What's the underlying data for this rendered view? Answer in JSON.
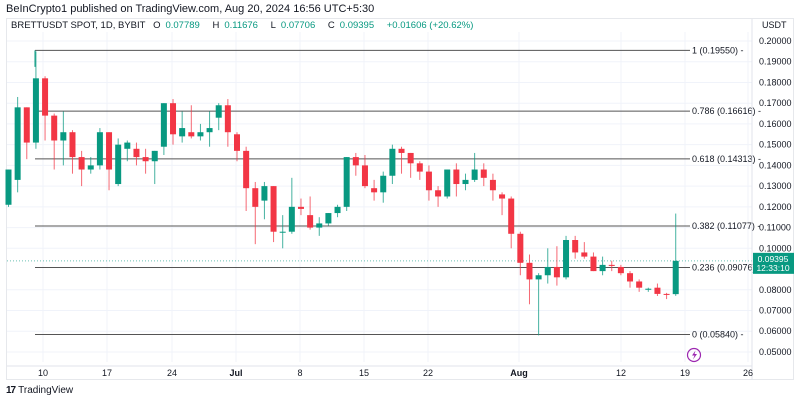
{
  "publisher_line": "BeInCrypto1 published on TradingView.com, Aug 20, 2024 16:56 UTC+5:30",
  "legend": {
    "symbol": "BRETTUSDT SPOT, 1D, BYBIT",
    "o_label": "O",
    "o": "0.07789",
    "h_label": "H",
    "h": "0.11676",
    "l_label": "L",
    "l": "0.07706",
    "c_label": "C",
    "c": "0.09395",
    "change": "+0.01606 (+20.62%)"
  },
  "axis": {
    "currency": "USDT",
    "last_price": "0.09395",
    "countdown": "12:33:10"
  },
  "footer": {
    "brand": "TradingView"
  },
  "colors": {
    "up": "#089981",
    "down": "#f23645",
    "fib_line": "#555555",
    "grid": "#f0f3fa",
    "price_line": "#089981"
  },
  "chart_data": {
    "type": "candlestick",
    "title": "BRETTUSDT SPOT, 1D, BYBIT",
    "xlabel": "",
    "ylabel": "USDT",
    "ylim": [
      0.045,
      0.205
    ],
    "grid": true,
    "y_ticks": [
      "0.20000",
      "0.19000",
      "0.18000",
      "0.17000",
      "0.16000",
      "0.15000",
      "0.14000",
      "0.13000",
      "0.12000",
      "0.11000",
      "0.10000",
      "0.08000",
      "0.07000",
      "0.06000",
      "0.05000"
    ],
    "x_ticks": [
      "10",
      "17",
      "24",
      "Jul",
      "8",
      "15",
      "22",
      "Aug",
      "12",
      "19",
      "26"
    ],
    "fib_levels": [
      {
        "ratio": "1",
        "price": 0.1955,
        "label": "1 (0.19550)"
      },
      {
        "ratio": "0.786",
        "price": 0.16616,
        "label": "0.786 (0.16616)"
      },
      {
        "ratio": "0.618",
        "price": 0.14313,
        "label": "0.618 (0.14313)"
      },
      {
        "ratio": "0.382",
        "price": 0.11077,
        "label": "0.382 (0.11077)"
      },
      {
        "ratio": "0.236",
        "price": 0.09076,
        "label": "0.236 (0.09076)"
      },
      {
        "ratio": "0",
        "price": 0.0584,
        "label": "0 (0.05840)"
      }
    ],
    "last": {
      "open": 0.07789,
      "high": 0.11676,
      "low": 0.07706,
      "close": 0.09395,
      "change": "+0.01606",
      "change_pct": "+20.62%"
    },
    "candles": [
      {
        "o": 0.121,
        "h": 0.132,
        "l": 0.12,
        "c": 0.138
      },
      {
        "o": 0.133,
        "h": 0.173,
        "l": 0.127,
        "c": 0.168
      },
      {
        "o": 0.168,
        "h": 0.168,
        "l": 0.143,
        "c": 0.151
      },
      {
        "o": 0.151,
        "h": 0.195,
        "l": 0.148,
        "c": 0.182
      },
      {
        "o": 0.182,
        "h": 0.183,
        "l": 0.152,
        "c": 0.164
      },
      {
        "o": 0.164,
        "h": 0.165,
        "l": 0.138,
        "c": 0.152
      },
      {
        "o": 0.152,
        "h": 0.166,
        "l": 0.14,
        "c": 0.156
      },
      {
        "o": 0.156,
        "h": 0.157,
        "l": 0.136,
        "c": 0.144
      },
      {
        "o": 0.144,
        "h": 0.147,
        "l": 0.13,
        "c": 0.138
      },
      {
        "o": 0.138,
        "h": 0.144,
        "l": 0.136,
        "c": 0.14
      },
      {
        "o": 0.14,
        "h": 0.158,
        "l": 0.138,
        "c": 0.156
      },
      {
        "o": 0.156,
        "h": 0.156,
        "l": 0.128,
        "c": 0.138
      },
      {
        "o": 0.131,
        "h": 0.153,
        "l": 0.13,
        "c": 0.15
      },
      {
        "o": 0.148,
        "h": 0.152,
        "l": 0.142,
        "c": 0.151
      },
      {
        "o": 0.148,
        "h": 0.151,
        "l": 0.14,
        "c": 0.144
      },
      {
        "o": 0.144,
        "h": 0.148,
        "l": 0.136,
        "c": 0.142
      },
      {
        "o": 0.142,
        "h": 0.147,
        "l": 0.131,
        "c": 0.147
      },
      {
        "o": 0.149,
        "h": 0.17,
        "l": 0.145,
        "c": 0.17
      },
      {
        "o": 0.17,
        "h": 0.172,
        "l": 0.15,
        "c": 0.155
      },
      {
        "o": 0.154,
        "h": 0.166,
        "l": 0.151,
        "c": 0.158
      },
      {
        "o": 0.156,
        "h": 0.169,
        "l": 0.153,
        "c": 0.154
      },
      {
        "o": 0.154,
        "h": 0.16,
        "l": 0.152,
        "c": 0.156
      },
      {
        "o": 0.156,
        "h": 0.166,
        "l": 0.149,
        "c": 0.158
      },
      {
        "o": 0.163,
        "h": 0.17,
        "l": 0.157,
        "c": 0.169
      },
      {
        "o": 0.169,
        "h": 0.172,
        "l": 0.149,
        "c": 0.156
      },
      {
        "o": 0.155,
        "h": 0.156,
        "l": 0.142,
        "c": 0.147
      },
      {
        "o": 0.147,
        "h": 0.149,
        "l": 0.118,
        "c": 0.129
      },
      {
        "o": 0.129,
        "h": 0.132,
        "l": 0.102,
        "c": 0.12
      },
      {
        "o": 0.123,
        "h": 0.132,
        "l": 0.114,
        "c": 0.13
      },
      {
        "o": 0.13,
        "h": 0.13,
        "l": 0.103,
        "c": 0.108
      },
      {
        "o": 0.108,
        "h": 0.116,
        "l": 0.1,
        "c": 0.108
      },
      {
        "o": 0.108,
        "h": 0.134,
        "l": 0.107,
        "c": 0.12
      },
      {
        "o": 0.12,
        "h": 0.124,
        "l": 0.116,
        "c": 0.119
      },
      {
        "o": 0.116,
        "h": 0.125,
        "l": 0.109,
        "c": 0.11
      },
      {
        "o": 0.11,
        "h": 0.115,
        "l": 0.106,
        "c": 0.112
      },
      {
        "o": 0.112,
        "h": 0.117,
        "l": 0.111,
        "c": 0.117
      },
      {
        "o": 0.117,
        "h": 0.121,
        "l": 0.115,
        "c": 0.12
      },
      {
        "o": 0.12,
        "h": 0.144,
        "l": 0.118,
        "c": 0.144
      },
      {
        "o": 0.144,
        "h": 0.146,
        "l": 0.135,
        "c": 0.14
      },
      {
        "o": 0.14,
        "h": 0.145,
        "l": 0.129,
        "c": 0.13
      },
      {
        "o": 0.129,
        "h": 0.133,
        "l": 0.123,
        "c": 0.127
      },
      {
        "o": 0.127,
        "h": 0.137,
        "l": 0.122,
        "c": 0.135
      },
      {
        "o": 0.135,
        "h": 0.15,
        "l": 0.131,
        "c": 0.148
      },
      {
        "o": 0.148,
        "h": 0.149,
        "l": 0.136,
        "c": 0.146
      },
      {
        "o": 0.146,
        "h": 0.145,
        "l": 0.134,
        "c": 0.141
      },
      {
        "o": 0.141,
        "h": 0.142,
        "l": 0.133,
        "c": 0.137
      },
      {
        "o": 0.137,
        "h": 0.14,
        "l": 0.123,
        "c": 0.128
      },
      {
        "o": 0.128,
        "h": 0.13,
        "l": 0.12,
        "c": 0.125
      },
      {
        "o": 0.125,
        "h": 0.138,
        "l": 0.124,
        "c": 0.138
      },
      {
        "o": 0.138,
        "h": 0.141,
        "l": 0.125,
        "c": 0.131
      },
      {
        "o": 0.131,
        "h": 0.136,
        "l": 0.128,
        "c": 0.133
      },
      {
        "o": 0.133,
        "h": 0.146,
        "l": 0.132,
        "c": 0.138
      },
      {
        "o": 0.138,
        "h": 0.141,
        "l": 0.13,
        "c": 0.134
      },
      {
        "o": 0.133,
        "h": 0.136,
        "l": 0.123,
        "c": 0.128
      },
      {
        "o": 0.126,
        "h": 0.127,
        "l": 0.116,
        "c": 0.124
      },
      {
        "o": 0.124,
        "h": 0.125,
        "l": 0.1,
        "c": 0.107
      },
      {
        "o": 0.107,
        "h": 0.108,
        "l": 0.087,
        "c": 0.093
      },
      {
        "o": 0.093,
        "h": 0.097,
        "l": 0.073,
        "c": 0.085
      },
      {
        "o": 0.085,
        "h": 0.088,
        "l": 0.058,
        "c": 0.087
      },
      {
        "o": 0.087,
        "h": 0.1,
        "l": 0.083,
        "c": 0.091
      },
      {
        "o": 0.091,
        "h": 0.101,
        "l": 0.082,
        "c": 0.086
      },
      {
        "o": 0.086,
        "h": 0.106,
        "l": 0.085,
        "c": 0.104
      },
      {
        "o": 0.104,
        "h": 0.106,
        "l": 0.095,
        "c": 0.098
      },
      {
        "o": 0.098,
        "h": 0.103,
        "l": 0.095,
        "c": 0.096
      },
      {
        "o": 0.096,
        "h": 0.098,
        "l": 0.09,
        "c": 0.089
      },
      {
        "o": 0.089,
        "h": 0.096,
        "l": 0.087,
        "c": 0.092
      },
      {
        "o": 0.092,
        "h": 0.094,
        "l": 0.089,
        "c": 0.0915
      },
      {
        "o": 0.091,
        "h": 0.092,
        "l": 0.087,
        "c": 0.088
      },
      {
        "o": 0.088,
        "h": 0.089,
        "l": 0.081,
        "c": 0.084
      },
      {
        "o": 0.084,
        "h": 0.085,
        "l": 0.079,
        "c": 0.081
      },
      {
        "o": 0.08,
        "h": 0.081,
        "l": 0.079,
        "c": 0.0805
      },
      {
        "o": 0.081,
        "h": 0.083,
        "l": 0.077,
        "c": 0.078
      },
      {
        "o": 0.078,
        "h": 0.0785,
        "l": 0.0755,
        "c": 0.0779
      },
      {
        "o": 0.07789,
        "h": 0.11676,
        "l": 0.07706,
        "c": 0.09395
      }
    ]
  }
}
